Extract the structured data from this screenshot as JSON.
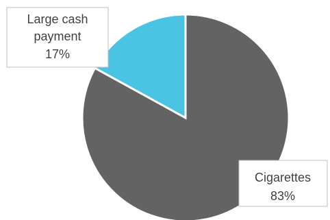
{
  "chart_data": {
    "type": "pie",
    "slices": [
      {
        "label_lines": [
          "Cigarettes"
        ],
        "percent_label": "83%",
        "value": 83,
        "color": "#636363"
      },
      {
        "label_lines": [
          "Large cash",
          "payment"
        ],
        "percent_label": "17%",
        "value": 17,
        "color": "#4bc3e3"
      }
    ],
    "legend": "none",
    "start_angle": "12 o'clock",
    "direction": "clockwise",
    "labels": "callout boxes with category and percentage"
  }
}
